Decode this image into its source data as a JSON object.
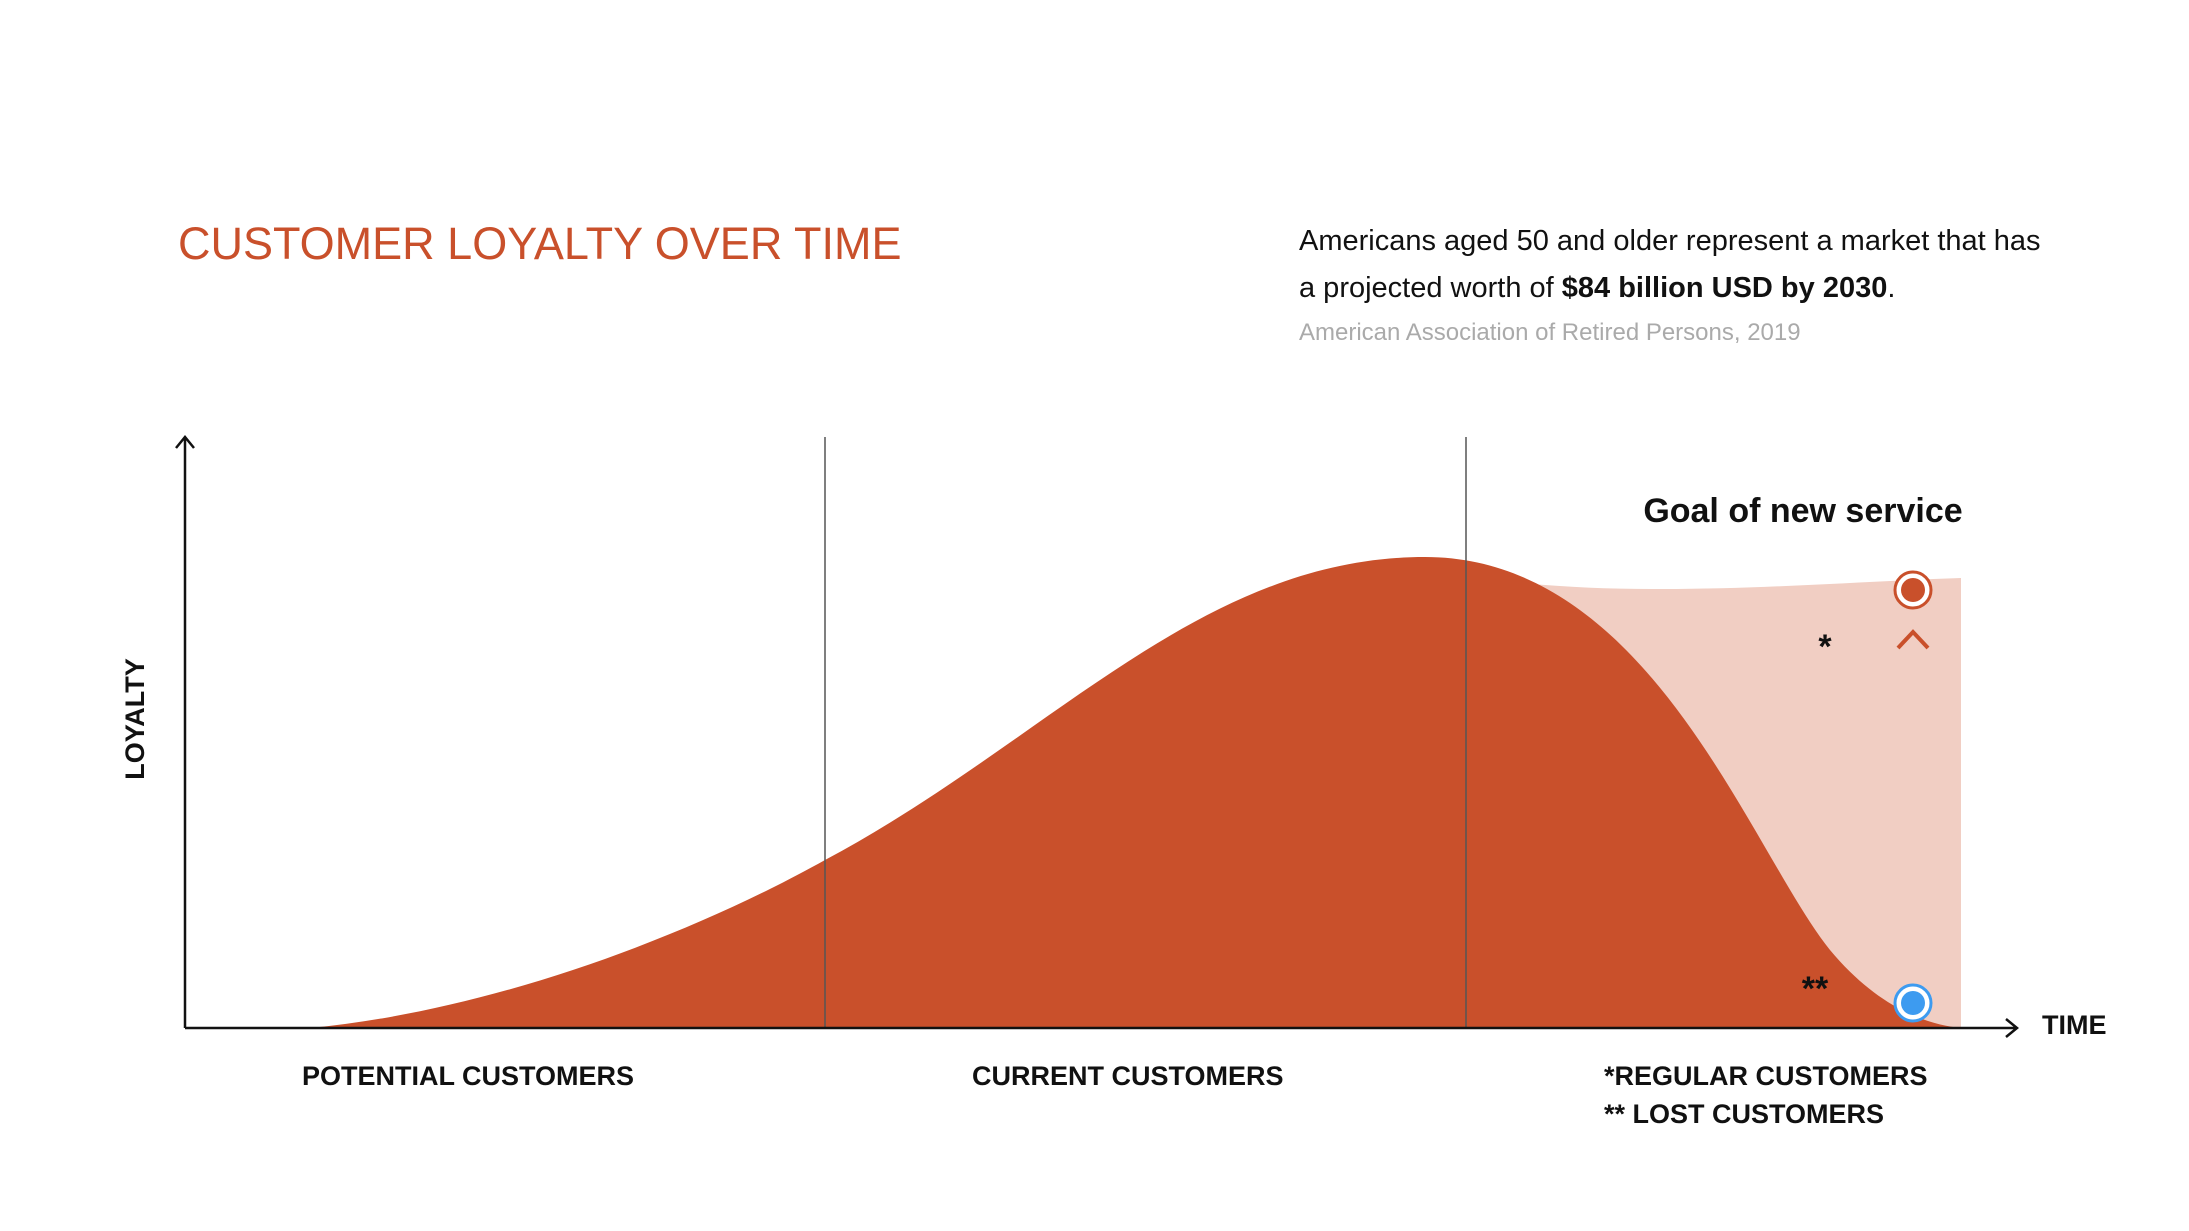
{
  "header": {
    "title": "CUSTOMER LOYALTY OVER TIME",
    "description": {
      "text_before": "Americans aged 50 and older represent a market that has a projected worth of",
      "emphasis": "$84 billion USD by 2030",
      "text_after": "."
    },
    "source": "American Association of Retired Persons, 2019"
  },
  "diagram": {
    "y_axis_label": "LOYALTY",
    "x_axis_label": "TIME",
    "goal_label": "Goal of new service",
    "regular_marker": "*",
    "lost_marker": "**",
    "stages": [
      "POTENTIAL CUSTOMERS",
      "CURRENT CUSTOMERS",
      "*REGULAR CUSTOMERS",
      "** LOST CUSTOMERS"
    ]
  }
}
